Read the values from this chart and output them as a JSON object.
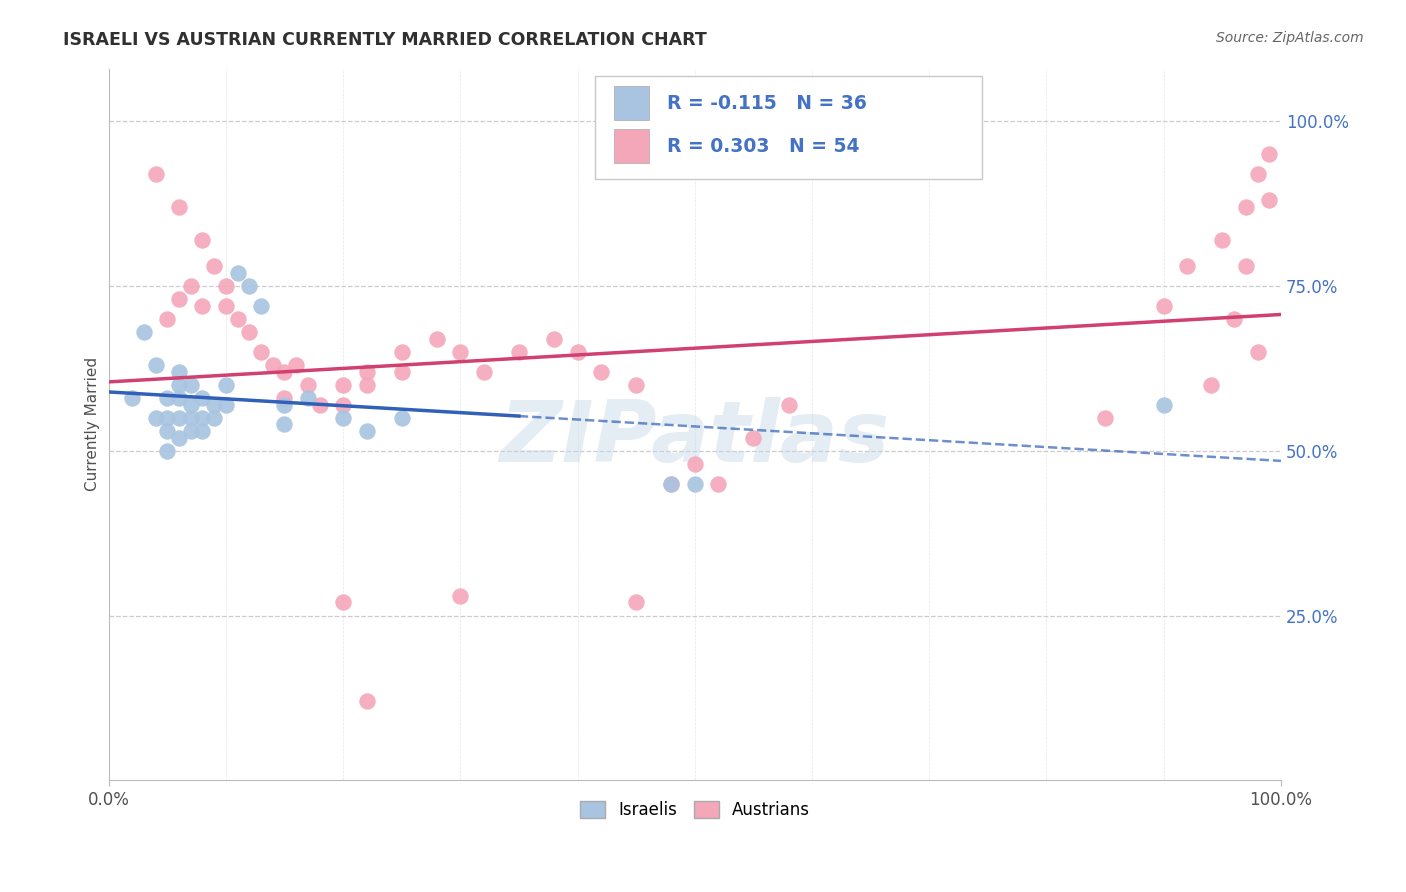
{
  "title": "ISRAELI VS AUSTRIAN CURRENTLY MARRIED CORRELATION CHART",
  "source": "Source: ZipAtlas.com",
  "ylabel": "Currently Married",
  "x_min": 0.0,
  "x_max": 1.0,
  "y_min": 0.0,
  "y_max": 1.08,
  "israeli_color": "#a8c4e0",
  "austrian_color": "#f4a7b9",
  "israeli_line_color": "#3060b8",
  "austrian_line_color": "#d04070",
  "legend_text_color": "#4472C4",
  "right_tick_color": "#4472C4",
  "R_israeli": -0.115,
  "N_israeli": 36,
  "R_austrian": 0.303,
  "N_austrian": 54,
  "background_color": "#ffffff",
  "grid_color": "#cccccc",
  "title_color": "#303030",
  "israeli_points": [
    [
      0.02,
      0.58
    ],
    [
      0.03,
      0.68
    ],
    [
      0.04,
      0.63
    ],
    [
      0.04,
      0.55
    ],
    [
      0.05,
      0.58
    ],
    [
      0.05,
      0.55
    ],
    [
      0.05,
      0.53
    ],
    [
      0.05,
      0.5
    ],
    [
      0.06,
      0.62
    ],
    [
      0.06,
      0.6
    ],
    [
      0.06,
      0.58
    ],
    [
      0.06,
      0.55
    ],
    [
      0.06,
      0.52
    ],
    [
      0.07,
      0.6
    ],
    [
      0.07,
      0.57
    ],
    [
      0.07,
      0.55
    ],
    [
      0.07,
      0.53
    ],
    [
      0.08,
      0.58
    ],
    [
      0.08,
      0.55
    ],
    [
      0.08,
      0.53
    ],
    [
      0.09,
      0.57
    ],
    [
      0.09,
      0.55
    ],
    [
      0.1,
      0.6
    ],
    [
      0.1,
      0.57
    ],
    [
      0.11,
      0.77
    ],
    [
      0.12,
      0.75
    ],
    [
      0.13,
      0.72
    ],
    [
      0.15,
      0.57
    ],
    [
      0.15,
      0.54
    ],
    [
      0.17,
      0.58
    ],
    [
      0.2,
      0.55
    ],
    [
      0.22,
      0.53
    ],
    [
      0.25,
      0.55
    ],
    [
      0.48,
      0.45
    ],
    [
      0.5,
      0.45
    ],
    [
      0.9,
      0.57
    ]
  ],
  "austrian_points": [
    [
      0.04,
      0.92
    ],
    [
      0.06,
      0.87
    ],
    [
      0.08,
      0.82
    ],
    [
      0.05,
      0.7
    ],
    [
      0.06,
      0.73
    ],
    [
      0.07,
      0.75
    ],
    [
      0.08,
      0.72
    ],
    [
      0.09,
      0.78
    ],
    [
      0.1,
      0.75
    ],
    [
      0.1,
      0.72
    ],
    [
      0.11,
      0.7
    ],
    [
      0.12,
      0.68
    ],
    [
      0.13,
      0.65
    ],
    [
      0.14,
      0.63
    ],
    [
      0.15,
      0.62
    ],
    [
      0.15,
      0.58
    ],
    [
      0.16,
      0.63
    ],
    [
      0.17,
      0.6
    ],
    [
      0.18,
      0.57
    ],
    [
      0.2,
      0.6
    ],
    [
      0.2,
      0.57
    ],
    [
      0.22,
      0.62
    ],
    [
      0.22,
      0.6
    ],
    [
      0.25,
      0.65
    ],
    [
      0.25,
      0.62
    ],
    [
      0.28,
      0.67
    ],
    [
      0.3,
      0.65
    ],
    [
      0.32,
      0.62
    ],
    [
      0.35,
      0.65
    ],
    [
      0.38,
      0.67
    ],
    [
      0.4,
      0.65
    ],
    [
      0.42,
      0.62
    ],
    [
      0.45,
      0.6
    ],
    [
      0.48,
      0.45
    ],
    [
      0.5,
      0.48
    ],
    [
      0.52,
      0.45
    ],
    [
      0.55,
      0.52
    ],
    [
      0.58,
      0.57
    ],
    [
      0.2,
      0.27
    ],
    [
      0.3,
      0.28
    ],
    [
      0.45,
      0.27
    ],
    [
      0.22,
      0.12
    ],
    [
      0.85,
      0.55
    ],
    [
      0.9,
      0.72
    ],
    [
      0.92,
      0.78
    ],
    [
      0.95,
      0.82
    ],
    [
      0.97,
      0.87
    ],
    [
      0.98,
      0.92
    ],
    [
      0.99,
      0.95
    ],
    [
      0.99,
      0.88
    ],
    [
      0.97,
      0.78
    ],
    [
      0.98,
      0.65
    ],
    [
      0.96,
      0.7
    ],
    [
      0.94,
      0.6
    ]
  ]
}
